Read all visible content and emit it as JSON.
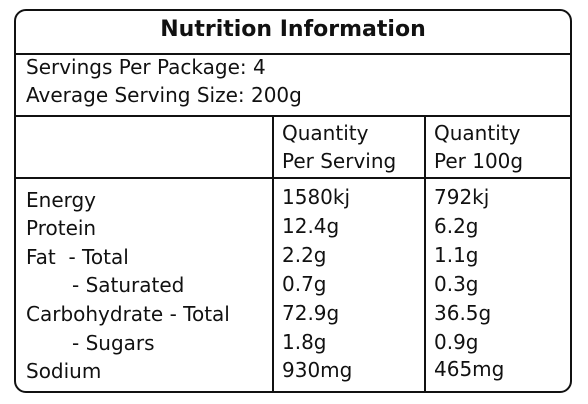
{
  "title": "Nutrition Information",
  "servings_per_package": "Servings Per Package: 4",
  "average_serving_size": "Average Serving Size: 200g",
  "headers": {
    "per_serving": [
      "Quantity",
      "Per Serving"
    ],
    "per_100g": [
      "Quantity",
      "Per 100g"
    ]
  },
  "rows": [
    {
      "label": "Energy",
      "serving": "1580kj",
      "per100": "792kj"
    },
    {
      "label": "Protein",
      "serving": "12.4g",
      "per100": "6.2g"
    },
    {
      "label": "Fat  - Total",
      "serving": "2.2g",
      "per100": "1.1g"
    },
    {
      "label": "- Saturated",
      "serving": "0.7g",
      "per100": "0.3g"
    },
    {
      "label": "Carbohydrate - Total",
      "serving": "72.9g",
      "per100": "36.5g"
    },
    {
      "label": "- Sugars",
      "serving": "1.8g",
      "per100": "0.9g"
    },
    {
      "label": "Sodium",
      "serving": "930mg",
      "per100": "465mg"
    }
  ]
}
